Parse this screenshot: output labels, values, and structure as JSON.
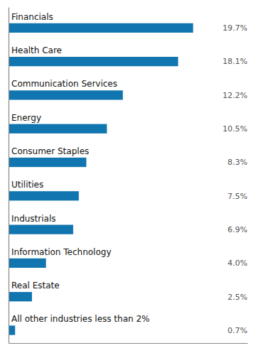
{
  "chart_data": {
    "type": "bar",
    "orientation": "horizontal",
    "categories": [
      "Financials",
      "Health Care",
      "Communication Services",
      "Energy",
      "Consumer Staples",
      "Utilities",
      "Industrials",
      "Information Technology",
      "Real Estate",
      "All other industries less than 2%"
    ],
    "values": [
      19.7,
      18.1,
      12.2,
      10.5,
      8.3,
      7.5,
      6.9,
      4.0,
      2.5,
      0.7
    ],
    "value_labels": [
      "19.7%",
      "18.1%",
      "12.2%",
      "10.5%",
      "8.3%",
      "7.5%",
      "6.9%",
      "4.0%",
      "2.5%",
      "0.7%"
    ],
    "color": "#1175b0",
    "xlim": [
      0,
      25.5
    ],
    "data_labels": true,
    "tick_labels": false,
    "grid": false
  }
}
